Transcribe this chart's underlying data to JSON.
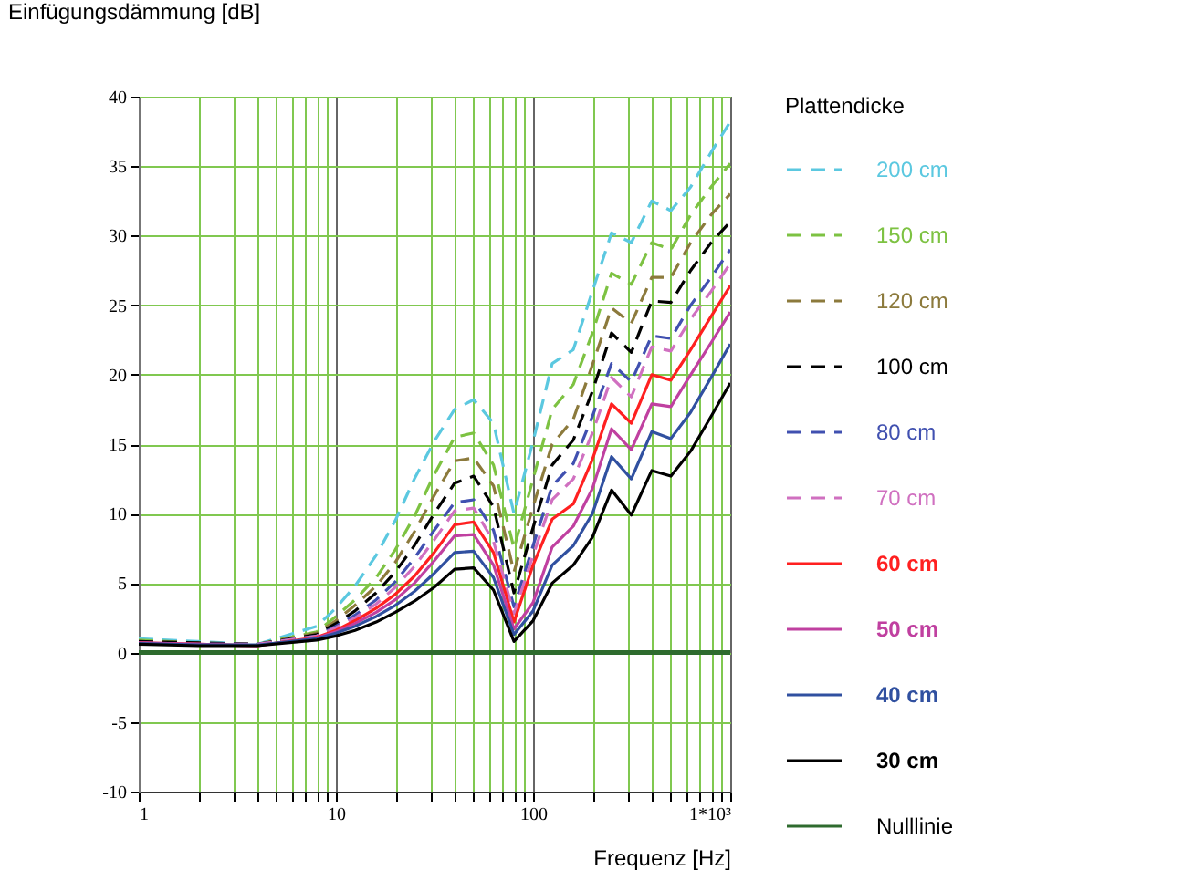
{
  "chart_data": {
    "type": "line",
    "ylabel": "Einfügungsdämmung [dB]",
    "xlabel": "Frequenz [Hz]",
    "legend_title": "Plattendicke",
    "log": "x",
    "grid": true,
    "legend": "right",
    "xlim": [
      1,
      1000
    ],
    "ylim": [
      -10,
      40
    ],
    "xticks": [
      1,
      {
        "value": 2,
        "label": null
      },
      {
        "value": 3,
        "label": null
      },
      {
        "value": 4,
        "label": null
      },
      {
        "value": 5,
        "label": null
      },
      {
        "value": 6,
        "label": null
      },
      {
        "value": 7,
        "label": null
      },
      {
        "value": 8,
        "label": null
      },
      {
        "value": 9,
        "label": null
      },
      10,
      {
        "value": 20,
        "label": null
      },
      {
        "value": 30,
        "label": null
      },
      {
        "value": 40,
        "label": null
      },
      {
        "value": 50,
        "label": null
      },
      {
        "value": 60,
        "label": null
      },
      {
        "value": 70,
        "label": null
      },
      {
        "value": 80,
        "label": null
      },
      {
        "value": 90,
        "label": null
      },
      100,
      {
        "value": 200,
        "label": null
      },
      {
        "value": 300,
        "label": null
      },
      {
        "value": 400,
        "label": null
      },
      {
        "value": 500,
        "label": null
      },
      {
        "value": 600,
        "label": null
      },
      {
        "value": 700,
        "label": null
      },
      {
        "value": 800,
        "label": null
      },
      {
        "value": 900,
        "label": null
      },
      {
        "value": 1000,
        "label": "1*10³"
      }
    ],
    "yticks": [
      -10,
      -5,
      0,
      5,
      10,
      15,
      20,
      25,
      30,
      35,
      40
    ],
    "x": [
      1,
      2,
      4,
      8,
      10,
      12.5,
      16,
      20,
      25,
      31.5,
      40,
      50,
      63,
      80,
      100,
      125,
      160,
      200,
      250,
      315,
      400,
      500,
      630,
      800,
      1000
    ],
    "series": [
      {
        "name": "200 cm",
        "color": "#5bc8e0",
        "line_style": "dashed",
        "values": [
          1.0,
          0.8,
          0.6,
          1.9,
          3.2,
          4.8,
          7.0,
          9.5,
          12.5,
          15.2,
          17.5,
          18.2,
          16.5,
          10.0,
          15.2,
          20.8,
          21.8,
          26.0,
          30.2,
          29.5,
          32.5,
          31.8,
          33.5,
          36.0,
          38.2
        ]
      },
      {
        "name": "150 cm",
        "color": "#7dc242",
        "line_style": "dashed",
        "values": [
          0.9,
          0.7,
          0.6,
          1.5,
          2.6,
          3.8,
          5.4,
          7.4,
          9.8,
          12.8,
          15.5,
          15.8,
          13.5,
          7.5,
          12.5,
          17.5,
          19.3,
          23.0,
          27.3,
          26.5,
          29.5,
          29.0,
          31.5,
          33.5,
          35.2
        ]
      },
      {
        "name": "120 cm",
        "color": "#8c7a3c",
        "line_style": "dashed",
        "values": [
          0.8,
          0.7,
          0.6,
          1.4,
          2.3,
          3.4,
          4.8,
          6.5,
          8.7,
          11.3,
          13.8,
          14.0,
          12.0,
          5.8,
          10.5,
          15.0,
          16.8,
          20.7,
          24.8,
          23.7,
          27.0,
          27.0,
          29.5,
          31.5,
          33.0
        ]
      },
      {
        "name": "100 cm",
        "color": "#000000",
        "line_style": "dashed",
        "values": [
          0.8,
          0.7,
          0.6,
          1.3,
          2.1,
          3.0,
          4.3,
          5.8,
          7.7,
          10.0,
          12.2,
          12.7,
          10.5,
          4.3,
          9.0,
          13.5,
          15.3,
          18.8,
          23.0,
          21.6,
          25.3,
          25.2,
          27.5,
          29.5,
          31.0
        ]
      },
      {
        "name": "80 cm",
        "color": "#4050b0",
        "line_style": "dashed",
        "values": [
          0.7,
          0.6,
          0.6,
          1.2,
          1.9,
          2.7,
          3.8,
          5.1,
          6.8,
          8.8,
          10.8,
          11.0,
          8.8,
          3.3,
          7.7,
          12.0,
          13.6,
          17.0,
          20.8,
          19.5,
          22.8,
          22.6,
          25.0,
          27.0,
          29.0
        ]
      },
      {
        "name": "70 cm",
        "color": "#d070c0",
        "line_style": "dashed",
        "values": [
          0.7,
          0.6,
          0.6,
          1.2,
          1.8,
          2.5,
          3.5,
          4.7,
          6.2,
          8.1,
          10.2,
          10.4,
          8.0,
          2.8,
          7.0,
          11.0,
          12.5,
          15.8,
          19.8,
          18.4,
          22.0,
          21.7,
          24.0,
          26.0,
          28.0
        ]
      },
      {
        "name": "60 cm",
        "color": "#ff2020",
        "line_style": "solid",
        "values": [
          0.7,
          0.6,
          0.5,
          1.1,
          1.6,
          2.3,
          3.2,
          4.2,
          5.5,
          7.2,
          9.2,
          9.4,
          7.2,
          2.2,
          6.3,
          9.6,
          10.7,
          13.9,
          17.9,
          16.5,
          20.0,
          19.6,
          21.8,
          24.2,
          26.4
        ]
      },
      {
        "name": "50 cm",
        "color": "#c040a0",
        "line_style": "solid",
        "values": [
          0.7,
          0.6,
          0.5,
          1.05,
          1.5,
          2.1,
          2.9,
          3.8,
          5.0,
          6.6,
          8.4,
          8.5,
          6.3,
          1.7,
          3.6,
          7.6,
          9.1,
          11.8,
          16.1,
          14.6,
          17.9,
          17.7,
          20.0,
          22.3,
          24.5
        ]
      },
      {
        "name": "40 cm",
        "color": "#3050a0",
        "line_style": "solid",
        "values": [
          0.65,
          0.55,
          0.55,
          1.0,
          1.4,
          1.9,
          2.6,
          3.4,
          4.4,
          5.7,
          7.2,
          7.3,
          5.4,
          1.3,
          3.0,
          6.3,
          7.7,
          10.0,
          14.1,
          12.5,
          15.9,
          15.4,
          17.3,
          19.8,
          22.2
        ]
      },
      {
        "name": "30 cm",
        "color": "#000000",
        "line_style": "solid",
        "values": [
          0.6,
          0.5,
          0.5,
          0.9,
          1.2,
          1.6,
          2.2,
          2.9,
          3.7,
          4.7,
          6.0,
          6.1,
          4.5,
          0.8,
          2.3,
          5.0,
          6.3,
          8.3,
          11.7,
          9.9,
          13.1,
          12.7,
          14.5,
          17.0,
          19.4
        ]
      }
    ],
    "ref_lines": [
      {
        "axis": "y",
        "value": 0,
        "label": "Nulllinie",
        "color": "#2e6b2e"
      }
    ]
  }
}
